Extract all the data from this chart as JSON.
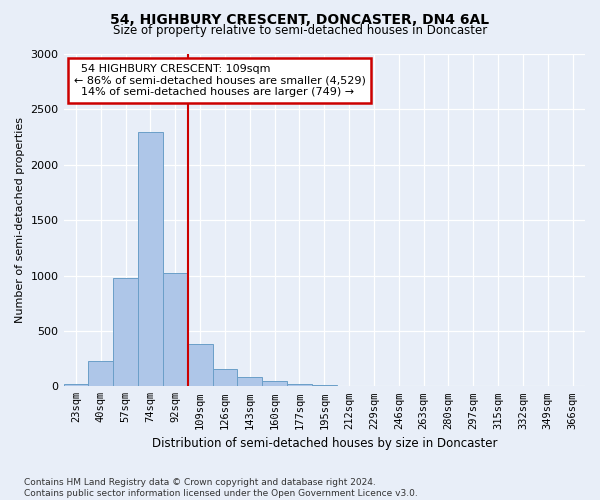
{
  "title": "54, HIGHBURY CRESCENT, DONCASTER, DN4 6AL",
  "subtitle": "Size of property relative to semi-detached houses in Doncaster",
  "xlabel": "Distribution of semi-detached houses by size in Doncaster",
  "ylabel": "Number of semi-detached properties",
  "categories": [
    "23sqm",
    "40sqm",
    "57sqm",
    "74sqm",
    "92sqm",
    "109sqm",
    "126sqm",
    "143sqm",
    "160sqm",
    "177sqm",
    "195sqm",
    "212sqm",
    "229sqm",
    "246sqm",
    "263sqm",
    "280sqm",
    "297sqm",
    "315sqm",
    "332sqm",
    "349sqm",
    "366sqm"
  ],
  "values": [
    20,
    225,
    980,
    2300,
    1020,
    380,
    160,
    80,
    50,
    25,
    10,
    5,
    3,
    3,
    2,
    1,
    1,
    1,
    1,
    1,
    1
  ],
  "bar_color": "#aec6e8",
  "bar_edge_color": "#6b9fc8",
  "property_line_x": 4.5,
  "property_line_label": "54 HIGHBURY CRESCENT: 109sqm",
  "smaller_pct": "86%",
  "smaller_count": "4,529",
  "larger_pct": "14%",
  "larger_count": "749",
  "annotation_box_color": "#ffffff",
  "annotation_box_edge": "#cc0000",
  "line_color": "#cc0000",
  "background_color": "#e8eef8",
  "footer": "Contains HM Land Registry data © Crown copyright and database right 2024.\nContains public sector information licensed under the Open Government Licence v3.0.",
  "ylim": [
    0,
    3000
  ],
  "yticks": [
    0,
    500,
    1000,
    1500,
    2000,
    2500,
    3000
  ]
}
